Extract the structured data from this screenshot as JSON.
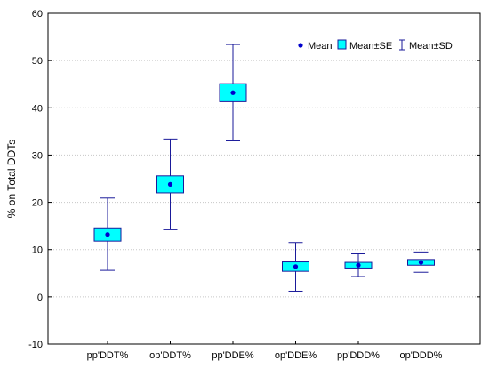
{
  "chart_data": {
    "type": "box",
    "title": "",
    "xlabel": "",
    "ylabel": "% on Total DDTs",
    "ylim": [
      -10,
      60
    ],
    "yticks": [
      -10,
      0,
      10,
      20,
      30,
      40,
      50,
      60
    ],
    "grid": true,
    "legend_placement": "top-right",
    "legend": {
      "mean": "Mean",
      "se": "Mean±SE",
      "sd": "Mean±SD"
    },
    "colors": {
      "box_fill": "#00ffff",
      "stroke": "#1a1a9a",
      "mean_marker": "#0000cc",
      "grid": "#c8c8c8"
    },
    "categories": [
      "pp'DDT%",
      "op'DDT%",
      "pp'DDE%",
      "op'DDE%",
      "pp'DDD%",
      "op'DDD%"
    ],
    "series": [
      {
        "mean": 13.2,
        "se_low": 11.8,
        "se_high": 14.6,
        "sd_low": 5.6,
        "sd_high": 20.9
      },
      {
        "mean": 23.8,
        "se_low": 22.0,
        "se_high": 25.6,
        "sd_low": 14.2,
        "sd_high": 33.4
      },
      {
        "mean": 43.2,
        "se_low": 41.3,
        "se_high": 45.1,
        "sd_low": 33.0,
        "sd_high": 53.4
      },
      {
        "mean": 6.4,
        "se_low": 5.4,
        "se_high": 7.4,
        "sd_low": 1.2,
        "sd_high": 11.5
      },
      {
        "mean": 6.7,
        "se_low": 6.1,
        "se_high": 7.3,
        "sd_low": 4.3,
        "sd_high": 9.1
      },
      {
        "mean": 7.3,
        "se_low": 6.7,
        "se_high": 7.9,
        "sd_low": 5.2,
        "sd_high": 9.5
      }
    ]
  }
}
